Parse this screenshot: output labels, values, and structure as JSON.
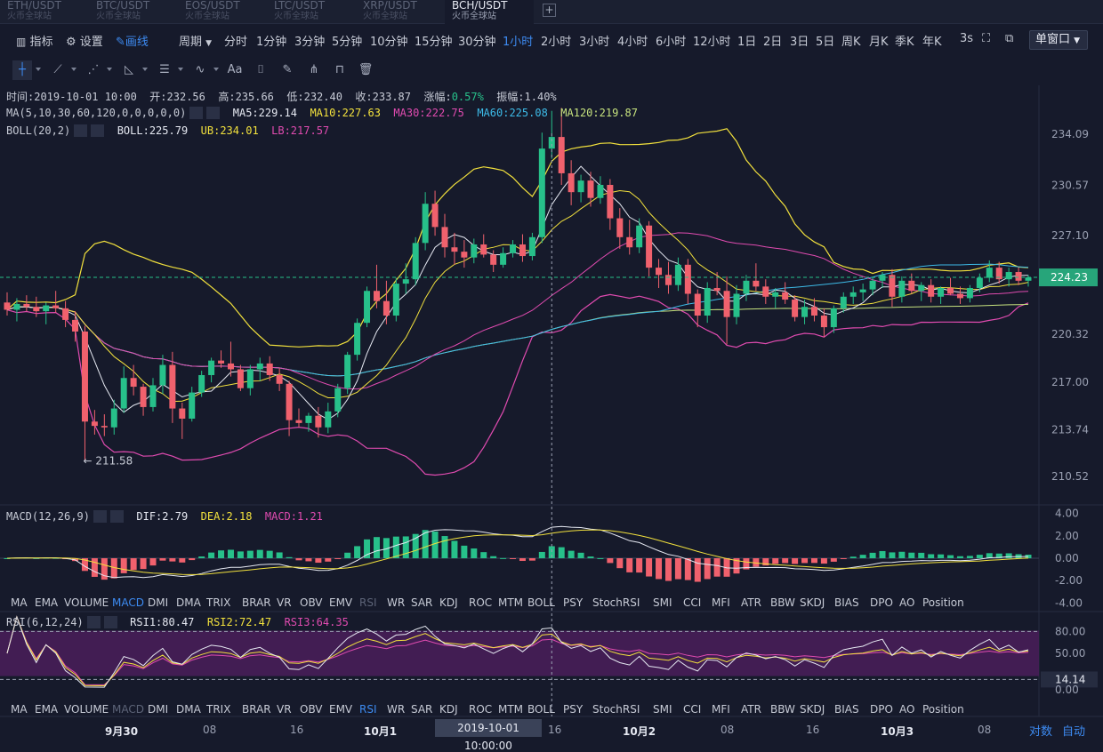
{
  "tabs": [
    {
      "pair": "ETH/USDT",
      "exchange": "火币全球站",
      "active": false
    },
    {
      "pair": "BTC/USDT",
      "exchange": "火币全球站",
      "active": false
    },
    {
      "pair": "EOS/USDT",
      "exchange": "火币全球站",
      "active": false
    },
    {
      "pair": "LTC/USDT",
      "exchange": "火币全球站",
      "active": false
    },
    {
      "pair": "XRP/USDT",
      "exchange": "火币全球站",
      "active": false
    },
    {
      "pair": "BCH/USDT",
      "exchange": "火币全球站",
      "active": true
    }
  ],
  "add_tab_label": "+",
  "toolbar": {
    "indicators": "指标",
    "settings": "设置",
    "draw": "画线",
    "period": "周期",
    "periods": [
      "分时",
      "1分钟",
      "3分钟",
      "5分钟",
      "10分钟",
      "15分钟",
      "30分钟",
      "1小时",
      "2小时",
      "3小时",
      "4小时",
      "6小时",
      "12小时",
      "1日",
      "2日",
      "3日",
      "5日",
      "周K",
      "月K",
      "季K",
      "年K"
    ],
    "active_period": "1小时",
    "refresh": "3s",
    "window_mode": "单窗口"
  },
  "draw_tools": [
    "crosshair",
    "trend-line",
    "multi-line",
    "angle",
    "channel",
    "wave",
    "text",
    "brush",
    "fib",
    "group",
    "lock",
    "delete"
  ],
  "ohlc": {
    "time_label": "时间:",
    "time": "2019-10-01 10:00",
    "open_label": "开:",
    "open": "232.56",
    "high_label": "高:",
    "high": "235.66",
    "low_label": "低:",
    "low": "232.40",
    "close_label": "收:",
    "close": "233.87",
    "change_label": "涨幅:",
    "change": "0.57%",
    "amp_label": "振幅:",
    "amp": "1.40%"
  },
  "ma": {
    "params": "MA(5,10,30,60,120,0,0,0,0,0)",
    "ma5": "MA5:229.14",
    "ma10": "MA10:227.63",
    "ma30": "MA30:222.75",
    "ma60": "MA60:225.08",
    "ma120": "MA120:219.87"
  },
  "boll": {
    "params": "BOLL(20,2)",
    "mid": "BOLL:225.79",
    "ub": "UB:234.01",
    "lb": "LB:217.57"
  },
  "macd": {
    "params": "MACD(12,26,9)",
    "dif": "DIF:2.79",
    "dea": "DEA:2.18",
    "macd": "MACD:1.21"
  },
  "rsi": {
    "params": "RSI(6,12,24)",
    "rsi1": "RSI1:80.47",
    "rsi2": "RSI2:72.47",
    "rsi3": "RSI3:64.35"
  },
  "price_axis": [
    "234.09",
    "230.57",
    "227.10",
    "224.23",
    "220.32",
    "217.00",
    "213.74",
    "210.52"
  ],
  "current_price": "224.23",
  "min_marker": "← 211.58",
  "macd_axis": [
    "4.00",
    "2.00",
    "0.00",
    "-2.00",
    "-4.00"
  ],
  "rsi_axis": [
    "80.00",
    "50.00",
    "14.14",
    "0.00"
  ],
  "indicator_tabs": [
    "MA",
    "EMA",
    "VOLUME",
    "MACD",
    "DMI",
    "DMA",
    "TRIX",
    "BRAR",
    "VR",
    "OBV",
    "EMV",
    "RSI",
    "WR",
    "SAR",
    "KDJ",
    "ROC",
    "MTM",
    "BOLL",
    "PSY",
    "StochRSI",
    "SMI",
    "CCI",
    "MFI",
    "ATR",
    "BBW",
    "SKDJ",
    "BIAS",
    "DPO",
    "AO",
    "Position"
  ],
  "time_axis": [
    {
      "label": "9月30",
      "day": true
    },
    {
      "label": "08",
      "day": false
    },
    {
      "label": "16",
      "day": false
    },
    {
      "label": "10月1",
      "day": true
    },
    {
      "label": "16",
      "day": false
    },
    {
      "label": "10月2",
      "day": true
    },
    {
      "label": "08",
      "day": false
    },
    {
      "label": "16",
      "day": false
    },
    {
      "label": "10月3",
      "day": true
    },
    {
      "label": "08",
      "day": false
    }
  ],
  "cursor_time": "2019-10-01 10:00:00",
  "scale_log": "对数",
  "scale_auto": "自动",
  "colors": {
    "up": "#27c08a",
    "down": "#f0616d",
    "ma5": "#e6e9f2",
    "ma10": "#f2e13d",
    "ma30": "#e04bb0",
    "ma60": "#3dbbe8",
    "ma120": "#c6e27e",
    "boll": "#f2e13d",
    "lb": "#e04bb0",
    "accent": "#3d8bf2"
  },
  "chart_data": {
    "type": "candlestick",
    "candles": [
      [
        222.5,
        223.2,
        221.6,
        222.0
      ],
      [
        222.0,
        222.8,
        221.2,
        222.4
      ],
      [
        222.4,
        223.0,
        221.9,
        222.2
      ],
      [
        222.2,
        222.9,
        221.5,
        221.9
      ],
      [
        221.9,
        222.5,
        221.0,
        222.3
      ],
      [
        222.3,
        223.3,
        221.8,
        222.1
      ],
      [
        222.1,
        222.6,
        220.8,
        221.3
      ],
      [
        221.3,
        221.9,
        219.8,
        220.5
      ],
      [
        220.5,
        220.9,
        211.6,
        214.3
      ],
      [
        214.3,
        215.1,
        213.4,
        214.0
      ],
      [
        214.0,
        214.8,
        213.3,
        213.9
      ],
      [
        213.9,
        215.8,
        213.4,
        215.2
      ],
      [
        215.2,
        218.1,
        214.9,
        217.3
      ],
      [
        217.3,
        218.2,
        216.1,
        216.7
      ],
      [
        216.7,
        216.9,
        214.7,
        215.3
      ],
      [
        215.3,
        217.3,
        215.0,
        216.8
      ],
      [
        216.8,
        218.9,
        216.2,
        218.2
      ],
      [
        218.2,
        219.1,
        214.2,
        215.2
      ],
      [
        215.2,
        215.6,
        213.1,
        214.5
      ],
      [
        214.5,
        216.7,
        214.3,
        216.3
      ],
      [
        216.3,
        217.8,
        216.0,
        217.5
      ],
      [
        217.5,
        218.7,
        217.0,
        218.5
      ],
      [
        218.5,
        219.2,
        218.0,
        218.3
      ],
      [
        218.3,
        219.8,
        217.4,
        217.9
      ],
      [
        217.9,
        218.2,
        216.4,
        216.6
      ],
      [
        216.6,
        218.2,
        216.1,
        217.9
      ],
      [
        217.9,
        218.7,
        217.1,
        218.3
      ],
      [
        218.3,
        218.8,
        217.1,
        217.5
      ],
      [
        217.5,
        218.0,
        216.4,
        216.9
      ],
      [
        216.9,
        217.1,
        213.3,
        214.4
      ],
      [
        214.4,
        215.2,
        213.9,
        214.2
      ],
      [
        214.2,
        214.9,
        213.6,
        214.7
      ],
      [
        214.7,
        215.3,
        213.2,
        213.9
      ],
      [
        213.9,
        215.6,
        213.5,
        215.0
      ],
      [
        215.0,
        216.9,
        214.6,
        216.6
      ],
      [
        216.6,
        219.1,
        216.2,
        218.9
      ],
      [
        218.9,
        221.4,
        218.5,
        221.1
      ],
      [
        221.1,
        223.6,
        220.8,
        223.3
      ],
      [
        223.3,
        225.1,
        222.1,
        222.6
      ],
      [
        222.6,
        224.0,
        221.0,
        221.6
      ],
      [
        221.6,
        224.2,
        221.2,
        223.8
      ],
      [
        223.8,
        225.2,
        223.1,
        224.1
      ],
      [
        224.1,
        227.0,
        223.7,
        226.6
      ],
      [
        226.6,
        230.1,
        226.1,
        229.3
      ],
      [
        229.3,
        230.2,
        227.1,
        227.7
      ],
      [
        227.7,
        228.6,
        225.6,
        226.3
      ],
      [
        226.3,
        227.3,
        225.1,
        226.0
      ],
      [
        226.0,
        226.8,
        224.9,
        225.6
      ],
      [
        225.6,
        226.9,
        225.2,
        226.5
      ],
      [
        226.5,
        227.2,
        225.6,
        225.8
      ],
      [
        225.8,
        226.1,
        224.6,
        225.1
      ],
      [
        225.1,
        226.3,
        224.9,
        225.9
      ],
      [
        225.9,
        226.8,
        225.6,
        226.5
      ],
      [
        226.5,
        227.2,
        225.3,
        225.7
      ],
      [
        225.7,
        227.3,
        225.4,
        227.0
      ],
      [
        227.0,
        234.2,
        226.6,
        233.1
      ],
      [
        233.1,
        235.7,
        232.4,
        233.9
      ],
      [
        233.9,
        235.9,
        230.6,
        231.4
      ],
      [
        231.4,
        232.3,
        229.2,
        230.1
      ],
      [
        230.1,
        231.3,
        229.4,
        230.9
      ],
      [
        230.9,
        231.5,
        229.1,
        229.7
      ],
      [
        229.7,
        231.2,
        229.3,
        230.6
      ],
      [
        230.6,
        231.0,
        227.5,
        228.3
      ],
      [
        228.3,
        229.0,
        226.2,
        227.0
      ],
      [
        227.0,
        228.2,
        225.8,
        226.3
      ],
      [
        226.3,
        228.3,
        225.9,
        227.8
      ],
      [
        227.8,
        228.1,
        224.3,
        224.9
      ],
      [
        224.9,
        225.5,
        223.5,
        224.4
      ],
      [
        224.4,
        225.3,
        223.1,
        223.7
      ],
      [
        223.7,
        225.6,
        223.3,
        225.1
      ],
      [
        225.1,
        225.5,
        222.4,
        223.1
      ],
      [
        223.1,
        223.4,
        220.8,
        221.6
      ],
      [
        221.6,
        223.9,
        221.1,
        223.5
      ],
      [
        223.5,
        224.6,
        223.0,
        223.3
      ],
      [
        223.3,
        224.3,
        219.6,
        221.5
      ],
      [
        221.5,
        223.7,
        221.0,
        223.1
      ],
      [
        223.1,
        224.4,
        222.6,
        224.0
      ],
      [
        224.0,
        225.2,
        223.3,
        223.6
      ],
      [
        223.6,
        224.1,
        222.4,
        222.9
      ],
      [
        222.9,
        223.5,
        222.1,
        223.2
      ],
      [
        223.2,
        223.9,
        222.4,
        222.7
      ],
      [
        222.7,
        223.0,
        221.2,
        221.5
      ],
      [
        221.5,
        222.7,
        221.0,
        222.2
      ],
      [
        222.2,
        222.8,
        221.2,
        221.6
      ],
      [
        221.6,
        222.1,
        220.1,
        220.8
      ],
      [
        220.8,
        222.3,
        220.4,
        222.1
      ],
      [
        222.1,
        223.2,
        221.8,
        222.9
      ],
      [
        222.9,
        223.6,
        222.4,
        223.2
      ],
      [
        223.2,
        223.8,
        222.6,
        223.4
      ],
      [
        223.4,
        224.2,
        223.0,
        224.0
      ],
      [
        224.0,
        224.6,
        223.5,
        224.4
      ],
      [
        224.4,
        224.8,
        222.2,
        222.9
      ],
      [
        222.9,
        224.3,
        222.5,
        224.0
      ],
      [
        224.0,
        224.5,
        223.1,
        223.3
      ],
      [
        223.3,
        223.9,
        222.6,
        223.7
      ],
      [
        223.7,
        224.1,
        222.5,
        222.9
      ],
      [
        222.9,
        223.6,
        222.4,
        223.5
      ],
      [
        223.5,
        224.2,
        223.0,
        223.1
      ],
      [
        223.1,
        223.6,
        222.4,
        222.8
      ],
      [
        222.8,
        223.7,
        222.5,
        223.5
      ],
      [
        223.5,
        224.5,
        223.2,
        224.2
      ],
      [
        224.2,
        225.4,
        223.9,
        224.9
      ],
      [
        224.9,
        225.3,
        223.8,
        224.1
      ],
      [
        224.1,
        224.9,
        223.6,
        224.6
      ],
      [
        224.6,
        224.9,
        223.7,
        224.0
      ],
      [
        224.0,
        224.4,
        223.6,
        224.23
      ]
    ],
    "ylim": [
      209.5,
      236.5
    ],
    "macd_ylim": [
      -4,
      4
    ],
    "rsi_ylim": [
      0,
      100
    ]
  }
}
